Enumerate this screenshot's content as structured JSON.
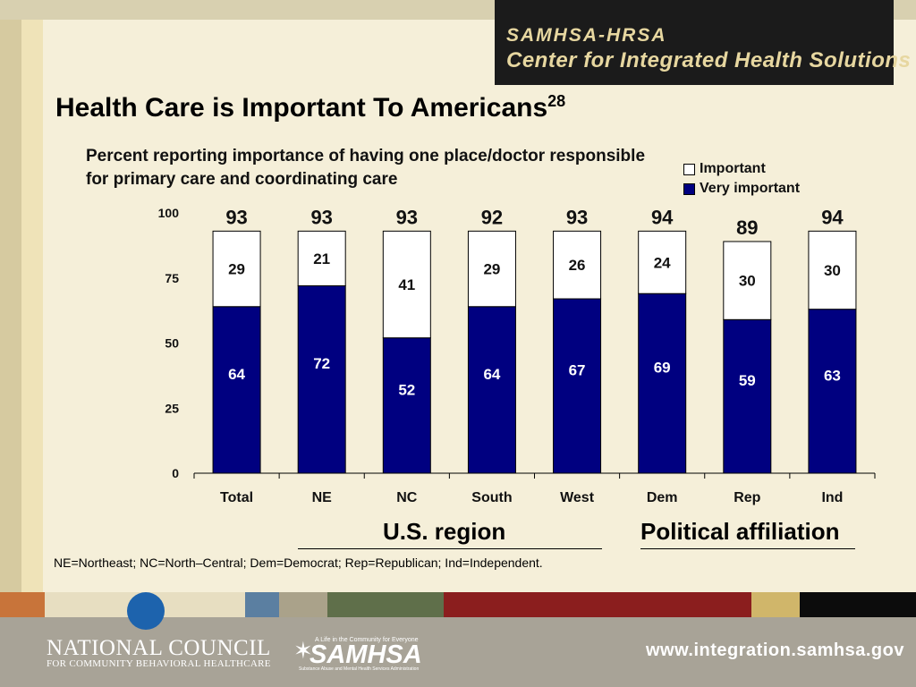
{
  "header": {
    "line1": "SAMHSA-HRSA",
    "line2": "Center for Integrated Health Solutions"
  },
  "title": {
    "main": "Health Care is Important To Americans",
    "superscript": "28"
  },
  "subtitle": "Percent reporting importance of having one place/doctor responsible for primary care and coordinating care",
  "legend": {
    "important": "Important",
    "very_important": "Very important"
  },
  "groups": {
    "region": "U.S. region",
    "political": "Political affiliation"
  },
  "footnote": "NE=Northeast; NC=North–Central; Dem=Democrat; Rep=Republican; Ind=Independent.",
  "colors": {
    "very_important": "#000080",
    "important": "#ffffff",
    "header_bg": "#1b1b1b",
    "header_text": "#e7d7a0"
  },
  "chart_data": {
    "type": "bar",
    "stacked": true,
    "categories": [
      "Total",
      "NE",
      "NC",
      "South",
      "West",
      "Dem",
      "Rep",
      "Ind"
    ],
    "series": [
      {
        "name": "Very important",
        "values": [
          64,
          72,
          52,
          64,
          67,
          69,
          59,
          63
        ]
      },
      {
        "name": "Important",
        "values": [
          29,
          21,
          41,
          29,
          26,
          24,
          30,
          30
        ]
      }
    ],
    "totals": [
      93,
      93,
      93,
      92,
      93,
      94,
      89,
      94
    ],
    "ylim": [
      0,
      100
    ],
    "yticks": [
      0,
      25,
      50,
      75,
      100
    ]
  },
  "footer": {
    "nc_name": "NATIONAL COUNCIL",
    "nc_sub": "FOR COMMUNITY BEHAVIORAL HEALTHCARE",
    "samhsa_tag": "A Life in the Community for Everyone",
    "samhsa_name": "SAMHSA",
    "samhsa_sub": "Substance Abuse and Mental Health Services Administration",
    "url": "www.integration.samhsa.gov"
  }
}
